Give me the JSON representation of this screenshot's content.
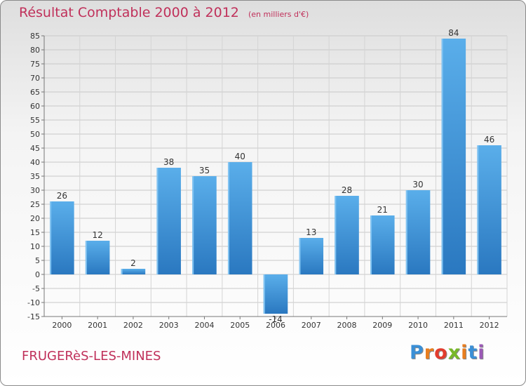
{
  "header": {
    "title": "Résultat Comptable 2000 à 2012",
    "unit": "(en milliers d'€)"
  },
  "footer": {
    "town": "FRUGERèS-LES-MINES",
    "brand": "Proxiti",
    "brand_colors": [
      "#3a8fd6",
      "#e87d1e",
      "#e23c2e",
      "#78b829",
      "#e87d1e",
      "#3a8fd6",
      "#9b59b6"
    ]
  },
  "colors": {
    "bar": "#4a9fe0",
    "title": "#c0305a"
  },
  "chart_data": {
    "type": "bar",
    "categories": [
      "2000",
      "2001",
      "2002",
      "2003",
      "2004",
      "2005",
      "2006",
      "2007",
      "2008",
      "2009",
      "2010",
      "2011",
      "2012"
    ],
    "values": [
      26,
      12,
      2,
      38,
      35,
      40,
      -14,
      13,
      28,
      21,
      30,
      84,
      46
    ],
    "ylim": [
      -15,
      85
    ],
    "ytick_step": 5,
    "grid": true,
    "title": "Résultat Comptable 2000 à 2012",
    "xlabel": "",
    "ylabel": ""
  }
}
